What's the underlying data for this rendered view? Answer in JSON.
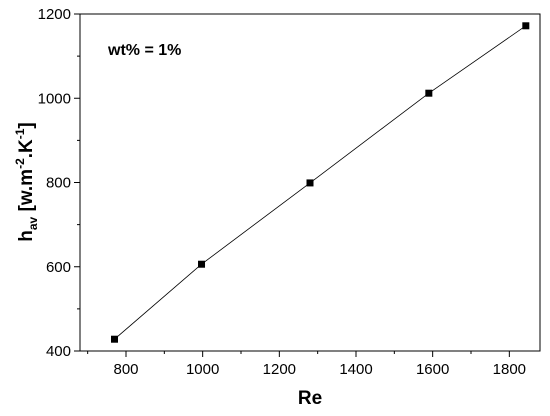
{
  "chart_data": {
    "type": "line",
    "title": "",
    "xlabel": "Re",
    "ylabel": {
      "base": "h",
      "base_sub": "av",
      "units_open": " [w.m",
      "units_exp1": "-2",
      "units_mid": ".K",
      "units_exp2": "-1",
      "units_close": "]"
    },
    "annotation": "wt% = 1%",
    "xlim": [
      680,
      1880
    ],
    "ylim": [
      400,
      1200
    ],
    "xticks": [
      800,
      1000,
      1200,
      1400,
      1600,
      1800
    ],
    "yticks": [
      400,
      600,
      800,
      1000,
      1200
    ],
    "grid": false,
    "marker": "square",
    "series_color": "#000000",
    "series": [
      {
        "x": [
          770,
          997,
          1280,
          1590,
          1843
        ],
        "y": [
          428,
          606,
          799,
          1012,
          1172
        ]
      }
    ]
  }
}
